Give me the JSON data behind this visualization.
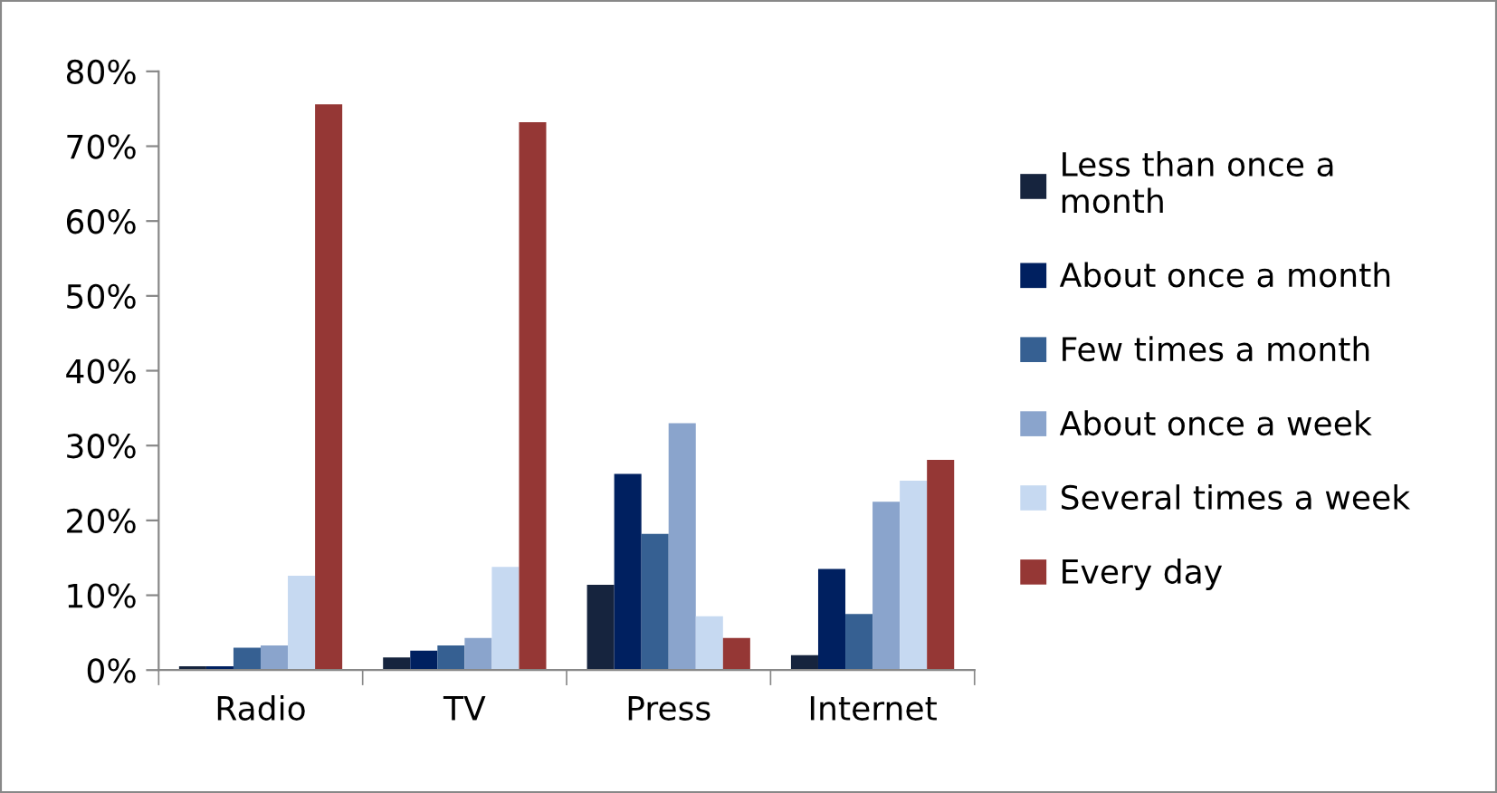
{
  "chart_data": {
    "type": "bar",
    "categories": [
      "Radio",
      "TV",
      "Press",
      "Internet"
    ],
    "series": [
      {
        "name": "Less than once a\nmonth",
        "color": "#16243e",
        "values": [
          0.5,
          1.7,
          11.4,
          2.0
        ]
      },
      {
        "name": "About once a month",
        "color": "#002060",
        "values": [
          0.5,
          2.6,
          26.2,
          13.5
        ]
      },
      {
        "name": "Few times a month",
        "color": "#366092",
        "values": [
          3.0,
          3.3,
          18.2,
          7.5
        ]
      },
      {
        "name": "About once a week",
        "color": "#8aa4cc",
        "values": [
          3.3,
          4.3,
          33.0,
          22.5
        ]
      },
      {
        "name": "Several times a week",
        "color": "#c6d9f1",
        "values": [
          12.6,
          13.8,
          7.2,
          25.3
        ]
      },
      {
        "name": "Every day",
        "color": "#953735",
        "values": [
          75.6,
          73.2,
          4.3,
          28.1
        ]
      }
    ],
    "ylim": [
      0,
      80
    ],
    "yticks": [
      {
        "value": 0,
        "label": "0%"
      },
      {
        "value": 10,
        "label": "10%"
      },
      {
        "value": 20,
        "label": "20%"
      },
      {
        "value": 30,
        "label": "30%"
      },
      {
        "value": 40,
        "label": "40%"
      },
      {
        "value": 50,
        "label": "50%"
      },
      {
        "value": 60,
        "label": "60%"
      },
      {
        "value": 70,
        "label": "70%"
      },
      {
        "value": 80,
        "label": "80%"
      }
    ],
    "grid": false,
    "legend": "right"
  }
}
